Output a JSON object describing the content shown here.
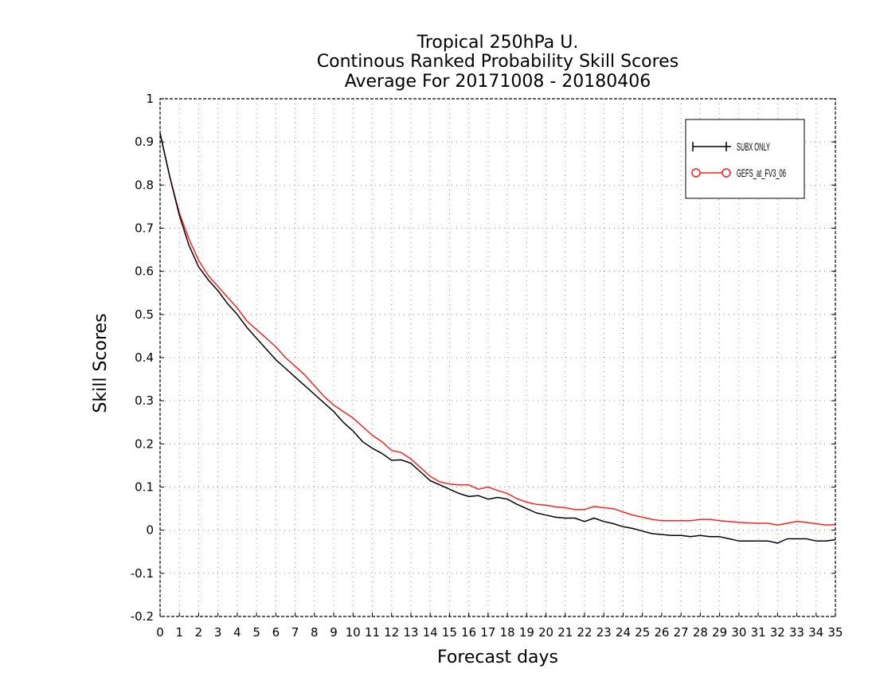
{
  "chart_data": {
    "type": "line",
    "title": [
      "Tropical 250hPa U.",
      "Continous Ranked Probability Skill Scores",
      "Average For 20171008 - 20180406"
    ],
    "xlabel": "Forecast days",
    "ylabel": "Skill Scores",
    "xlim": [
      0,
      35
    ],
    "ylim": [
      -0.2,
      1
    ],
    "xticks": [
      0,
      1,
      2,
      3,
      4,
      5,
      6,
      7,
      8,
      9,
      10,
      11,
      12,
      13,
      14,
      15,
      16,
      17,
      18,
      19,
      20,
      21,
      22,
      23,
      24,
      25,
      26,
      27,
      28,
      29,
      30,
      31,
      32,
      33,
      34,
      35
    ],
    "yticks": [
      -0.2,
      -0.1,
      0,
      0.1,
      0.2,
      0.3,
      0.4,
      0.5,
      0.6,
      0.7,
      0.8,
      0.9,
      1
    ],
    "grid": true,
    "legend_position": "top-right",
    "series": [
      {
        "name": "SUBX ONLY",
        "color": "#000000",
        "marker": "plus",
        "x": [
          0,
          0.5,
          1,
          1.5,
          2,
          2.5,
          3,
          3.5,
          4,
          4.5,
          5,
          5.5,
          6,
          6.5,
          7,
          7.5,
          8,
          8.5,
          9,
          9.5,
          10,
          10.5,
          11,
          11.5,
          12,
          12.5,
          13,
          13.5,
          14,
          14.5,
          15,
          15.5,
          16,
          16.5,
          17,
          17.5,
          18,
          18.5,
          19,
          19.5,
          20,
          20.5,
          21,
          21.5,
          22,
          22.5,
          23,
          23.5,
          24,
          24.5,
          25,
          25.5,
          26,
          26.5,
          27,
          27.5,
          28,
          28.5,
          29,
          29.5,
          30,
          30.5,
          31,
          31.5,
          32,
          32.5,
          33,
          33.5,
          34,
          34.5,
          35
        ],
        "y": [
          0.92,
          0.82,
          0.73,
          0.66,
          0.61,
          0.58,
          0.555,
          0.525,
          0.5,
          0.47,
          0.445,
          0.42,
          0.395,
          0.375,
          0.355,
          0.335,
          0.315,
          0.295,
          0.275,
          0.25,
          0.23,
          0.205,
          0.19,
          0.178,
          0.162,
          0.163,
          0.155,
          0.135,
          0.115,
          0.105,
          0.095,
          0.085,
          0.078,
          0.08,
          0.072,
          0.076,
          0.072,
          0.06,
          0.05,
          0.04,
          0.035,
          0.03,
          0.028,
          0.028,
          0.02,
          0.028,
          0.02,
          0.015,
          0.008,
          0.004,
          -0.002,
          -0.008,
          -0.01,
          -0.012,
          -0.012,
          -0.015,
          -0.012,
          -0.015,
          -0.015,
          -0.02,
          -0.025,
          -0.025,
          -0.025,
          -0.025,
          -0.03,
          -0.02,
          -0.02,
          -0.02,
          -0.025,
          -0.025,
          -0.022
        ]
      },
      {
        "name": "GEFS_at_FV3_06",
        "color": "#ff2020",
        "marker": "circle",
        "x": [
          0,
          0.5,
          1,
          1.5,
          2,
          2.5,
          3,
          3.5,
          4,
          4.5,
          5,
          5.5,
          6,
          6.5,
          7,
          7.5,
          8,
          8.5,
          9,
          9.5,
          10,
          10.5,
          11,
          11.5,
          12,
          12.5,
          13,
          13.5,
          14,
          14.5,
          15,
          15.5,
          16,
          16.5,
          17,
          17.5,
          18,
          18.5,
          19,
          19.5,
          20,
          20.5,
          21,
          21.5,
          22,
          22.5,
          23,
          23.5,
          24,
          24.5,
          25,
          25.5,
          26,
          26.5,
          27,
          27.5,
          28,
          28.5,
          29,
          29.5,
          30,
          30.5,
          31,
          31.5,
          32,
          32.5,
          33,
          33.5,
          34,
          34.5,
          35
        ],
        "y": [
          0.92,
          0.82,
          0.735,
          0.675,
          0.625,
          0.59,
          0.565,
          0.54,
          0.515,
          0.485,
          0.465,
          0.445,
          0.425,
          0.4,
          0.38,
          0.36,
          0.335,
          0.31,
          0.29,
          0.275,
          0.26,
          0.24,
          0.22,
          0.205,
          0.185,
          0.18,
          0.165,
          0.145,
          0.125,
          0.112,
          0.107,
          0.105,
          0.105,
          0.095,
          0.1,
          0.092,
          0.085,
          0.073,
          0.065,
          0.06,
          0.058,
          0.054,
          0.052,
          0.048,
          0.048,
          0.055,
          0.052,
          0.05,
          0.042,
          0.035,
          0.03,
          0.025,
          0.022,
          0.022,
          0.022,
          0.022,
          0.025,
          0.025,
          0.022,
          0.02,
          0.018,
          0.017,
          0.016,
          0.016,
          0.012,
          0.016,
          0.02,
          0.018,
          0.015,
          0.012,
          0.013
        ]
      }
    ]
  }
}
